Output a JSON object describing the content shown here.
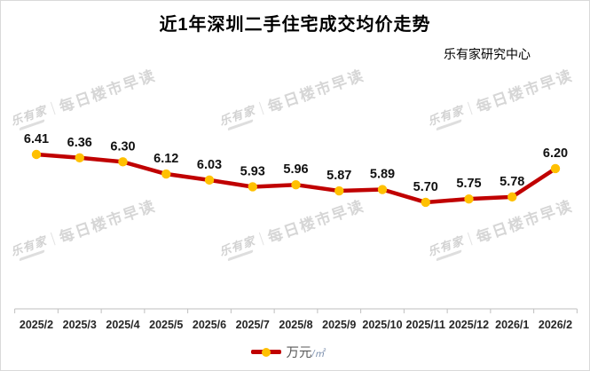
{
  "title": "近1年深圳二手住宅成交均价走势",
  "subtitle": "乐有家研究中心",
  "watermark": {
    "brand": "乐有家",
    "text": "每日楼市早读"
  },
  "legend": {
    "label": "万元",
    "unit": "/㎡"
  },
  "colors": {
    "line": "#C00000",
    "marker": "#FFC000",
    "axis": "#BFBFBF",
    "value_label": "#111111",
    "category_label": "#262626",
    "watermark": "#d6d6d6"
  },
  "chart_data": {
    "type": "line",
    "title": "近1年深圳二手住宅成交均价走势",
    "source": "乐有家研究中心",
    "categories": [
      "2025/2",
      "2025/3",
      "2025/4",
      "2025/5",
      "2025/6",
      "2025/7",
      "2025/8",
      "2025/9",
      "2025/10",
      "2025/11",
      "2025/12",
      "2026/1",
      "2026/2"
    ],
    "series": [
      {
        "name": "万元/㎡",
        "values": [
          6.41,
          6.36,
          6.3,
          6.12,
          6.03,
          5.93,
          5.96,
          5.87,
          5.89,
          5.7,
          5.75,
          5.78,
          6.2
        ]
      }
    ],
    "xlabel": "",
    "ylabel": "万元/㎡",
    "y_axis_visible": false,
    "grid": false,
    "data_labels": true,
    "legend_position": "bottom",
    "line_color": "#C00000",
    "marker_color": "#FFC000",
    "axis_color": "#BFBFBF"
  }
}
